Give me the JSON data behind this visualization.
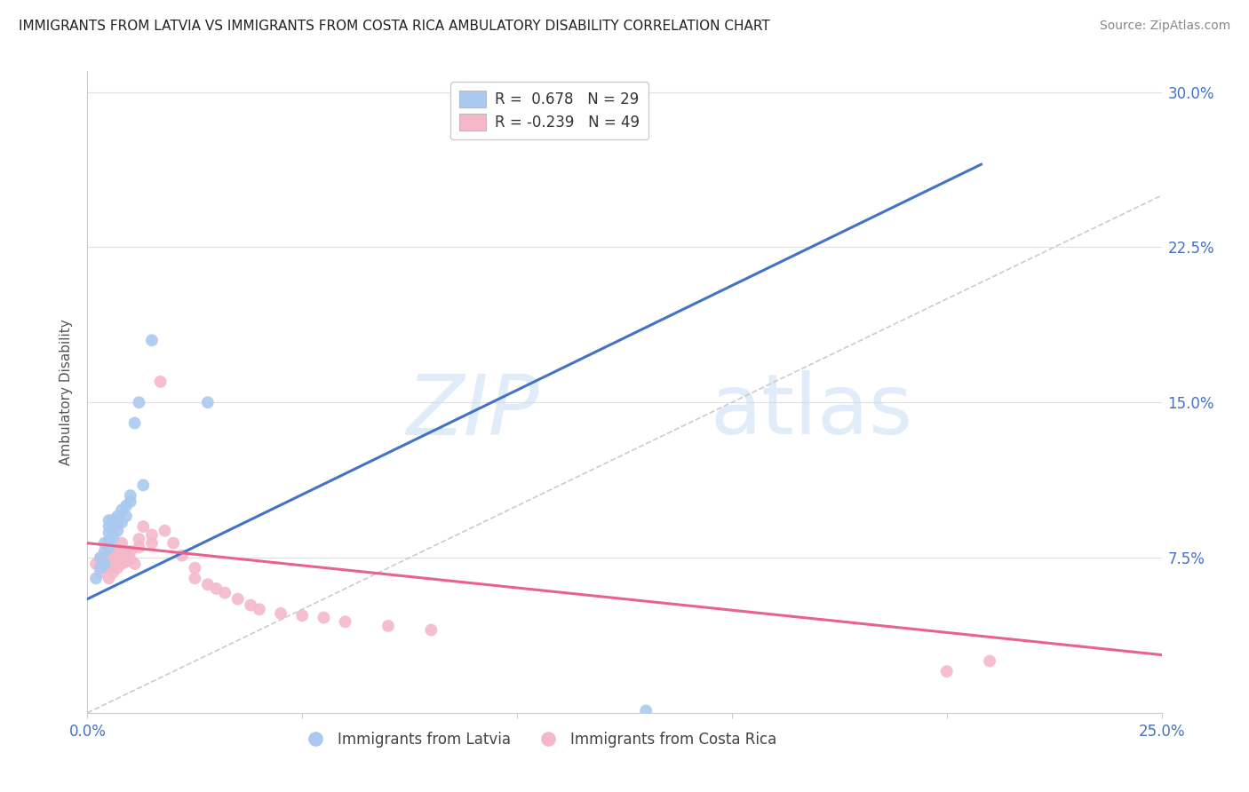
{
  "title": "IMMIGRANTS FROM LATVIA VS IMMIGRANTS FROM COSTA RICA AMBULATORY DISABILITY CORRELATION CHART",
  "source": "Source: ZipAtlas.com",
  "ylabel": "Ambulatory Disability",
  "xlim": [
    0.0,
    0.25
  ],
  "ylim": [
    0.0,
    0.31
  ],
  "yticks": [
    0.075,
    0.15,
    0.225,
    0.3
  ],
  "ytick_labels": [
    "7.5%",
    "15.0%",
    "22.5%",
    "30.0%"
  ],
  "xtick_labels": [
    "0.0%",
    "25.0%"
  ],
  "blue_color": "#aac9f0",
  "pink_color": "#f5b8cb",
  "blue_line_color": "#4472c4",
  "pink_line_color": "#e8628a",
  "diag_color": "#cccccc",
  "watermark_color": "#ddeeff",
  "grid_color": "#e0e0e0",
  "title_color": "#222222",
  "source_color": "#888888",
  "ylabel_color": "#555555",
  "tick_color": "#4472c4",
  "legend_label1": "R =  0.678   N = 29",
  "legend_label2": "R = -0.239   N = 49",
  "bottom_label1": "Immigrants from Latvia",
  "bottom_label2": "Immigrants from Costa Rica",
  "latvia_x": [
    0.002,
    0.003,
    0.003,
    0.004,
    0.004,
    0.004,
    0.005,
    0.005,
    0.005,
    0.005,
    0.005,
    0.006,
    0.006,
    0.006,
    0.007,
    0.007,
    0.007,
    0.008,
    0.008,
    0.009,
    0.009,
    0.01,
    0.01,
    0.011,
    0.012,
    0.013,
    0.015,
    0.028,
    0.13
  ],
  "latvia_y": [
    0.065,
    0.07,
    0.075,
    0.072,
    0.078,
    0.082,
    0.08,
    0.083,
    0.087,
    0.09,
    0.093,
    0.085,
    0.09,
    0.093,
    0.088,
    0.091,
    0.095,
    0.092,
    0.098,
    0.095,
    0.1,
    0.102,
    0.105,
    0.14,
    0.15,
    0.11,
    0.18,
    0.15,
    0.001
  ],
  "costa_rica_x": [
    0.002,
    0.003,
    0.003,
    0.004,
    0.004,
    0.005,
    0.005,
    0.005,
    0.005,
    0.006,
    0.006,
    0.006,
    0.006,
    0.007,
    0.007,
    0.007,
    0.008,
    0.008,
    0.008,
    0.009,
    0.009,
    0.01,
    0.01,
    0.011,
    0.012,
    0.012,
    0.013,
    0.015,
    0.015,
    0.017,
    0.018,
    0.02,
    0.022,
    0.025,
    0.025,
    0.028,
    0.03,
    0.032,
    0.035,
    0.038,
    0.04,
    0.045,
    0.05,
    0.055,
    0.06,
    0.07,
    0.08,
    0.2,
    0.21
  ],
  "costa_rica_y": [
    0.072,
    0.068,
    0.074,
    0.07,
    0.075,
    0.065,
    0.07,
    0.073,
    0.077,
    0.068,
    0.072,
    0.075,
    0.08,
    0.07,
    0.074,
    0.079,
    0.072,
    0.076,
    0.082,
    0.073,
    0.078,
    0.074,
    0.078,
    0.072,
    0.08,
    0.084,
    0.09,
    0.082,
    0.086,
    0.16,
    0.088,
    0.082,
    0.076,
    0.07,
    0.065,
    0.062,
    0.06,
    0.058,
    0.055,
    0.052,
    0.05,
    0.048,
    0.047,
    0.046,
    0.044,
    0.042,
    0.04,
    0.02,
    0.025
  ],
  "blue_line_x": [
    0.0,
    0.208
  ],
  "blue_line_y": [
    0.055,
    0.265
  ],
  "pink_line_x": [
    0.0,
    0.25
  ],
  "pink_line_y": [
    0.082,
    0.028
  ]
}
